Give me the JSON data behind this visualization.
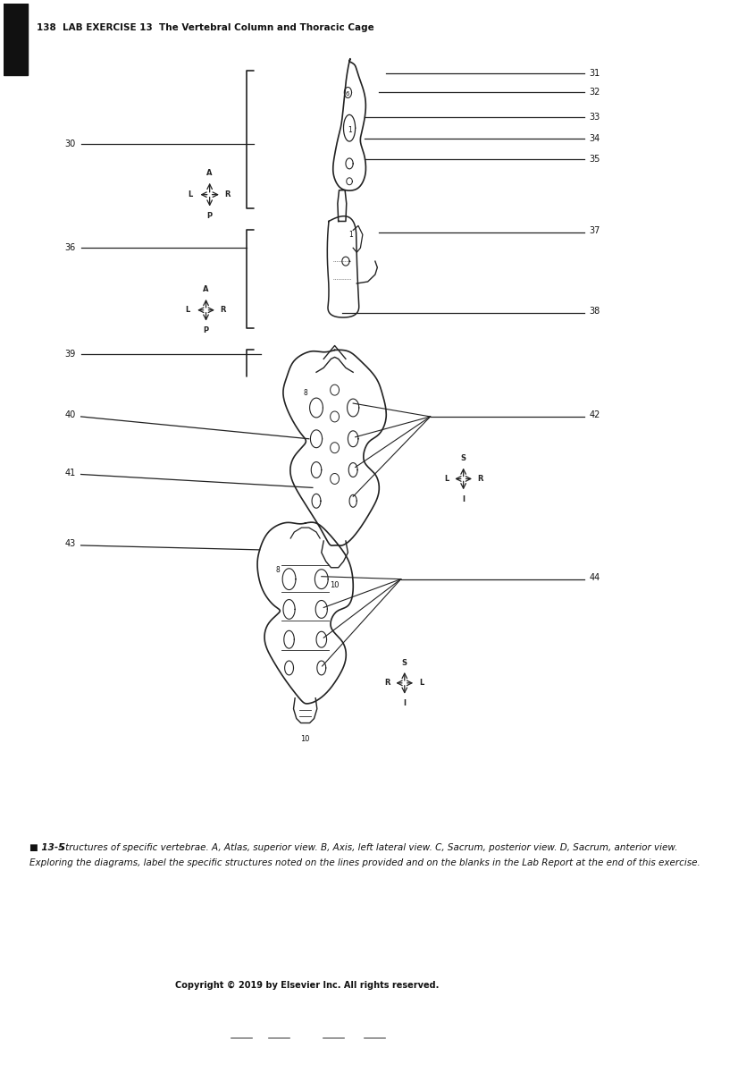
{
  "title": "138  LAB EXERCISE 13  The Vertebral Column and Thoracic Cage",
  "caption_bold": "■ 13-5",
  "caption_text": "  Structures of specific vertebrae. A, Atlas, superior view. B, Axis, left lateral view. C, Sacrum, posterior view. D, Sacrum, anterior view.",
  "caption_line2": "Exploring the diagrams, label the specific structures noted on the lines provided and on the blanks in the Lab Report at the end of this exercise.",
  "copyright": "Copyright © 2019 by Elsevier Inc. All rights reserved.",
  "bg_color": "#ffffff",
  "text_color": "#111111",
  "line_color": "#222222"
}
